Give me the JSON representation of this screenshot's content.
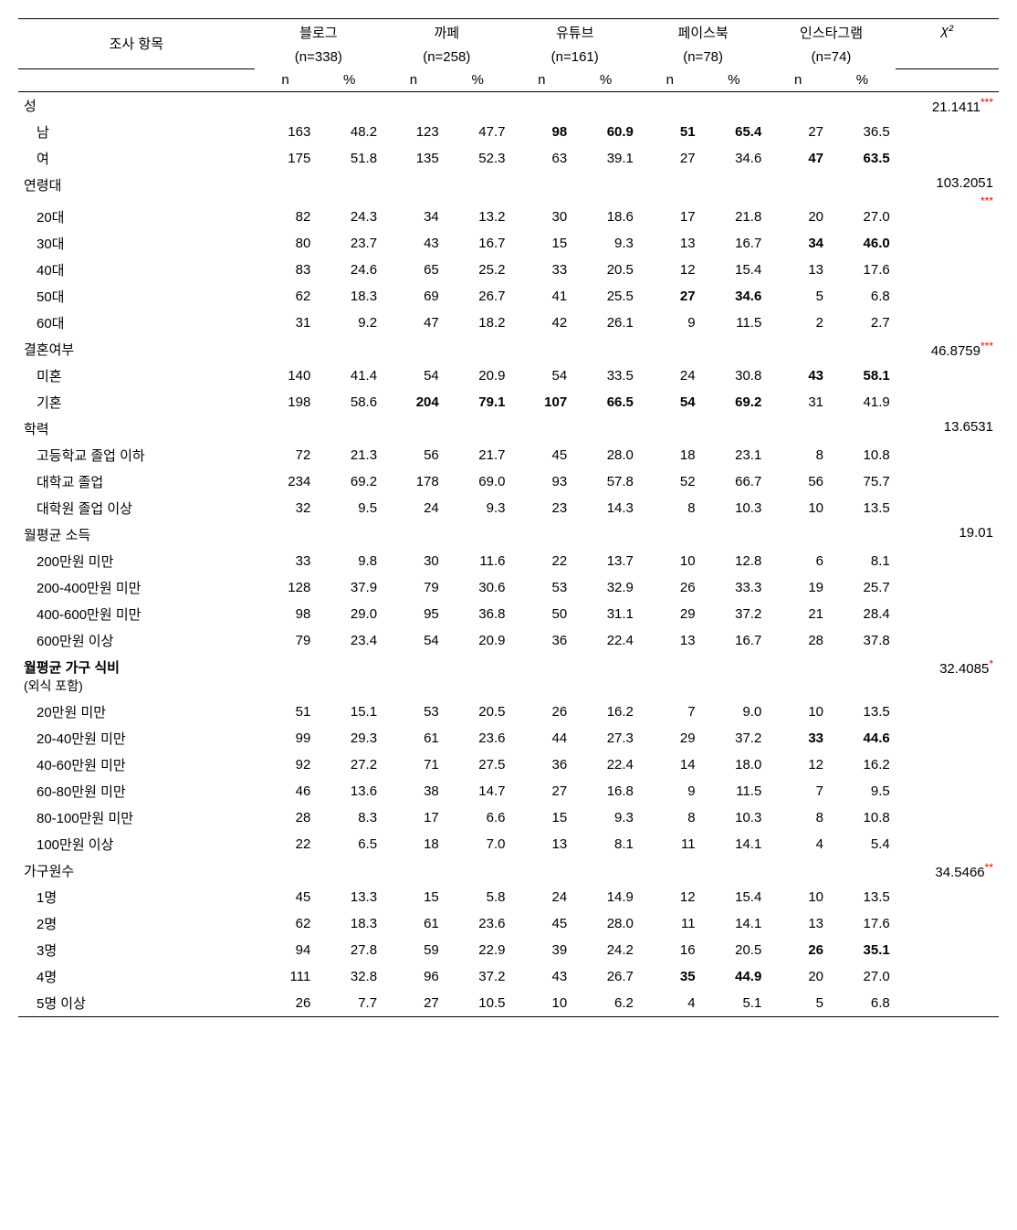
{
  "headers": {
    "survey_item": "조사 항목",
    "n_label": "n",
    "pct_label": "%",
    "chi_label": "χ²",
    "columns": [
      {
        "name": "블로그",
        "n": "(n=338)"
      },
      {
        "name": "까페",
        "n": "(n=258)"
      },
      {
        "name": "유튜브",
        "n": "(n=161)"
      },
      {
        "name": "페이스북",
        "n": "(n=78)"
      },
      {
        "name": "인스타그램",
        "n": "(n=74)"
      }
    ]
  },
  "sections": [
    {
      "label": "성",
      "chi": "21.1411",
      "sig": "***",
      "rows": [
        {
          "label": "남",
          "cells": [
            [
              "163",
              "48.2"
            ],
            [
              "123",
              "47.7"
            ],
            [
              "98",
              "60.9",
              true
            ],
            [
              "51",
              "65.4",
              true
            ],
            [
              "27",
              "36.5"
            ]
          ]
        },
        {
          "label": "여",
          "cells": [
            [
              "175",
              "51.8"
            ],
            [
              "135",
              "52.3"
            ],
            [
              "63",
              "39.1"
            ],
            [
              "27",
              "34.6"
            ],
            [
              "47",
              "63.5",
              true
            ]
          ]
        }
      ]
    },
    {
      "label": "연령대",
      "chi": "103.2051",
      "sig": "***",
      "sig_below": true,
      "rows": [
        {
          "label": "20대",
          "cells": [
            [
              "82",
              "24.3"
            ],
            [
              "34",
              "13.2"
            ],
            [
              "30",
              "18.6"
            ],
            [
              "17",
              "21.8"
            ],
            [
              "20",
              "27.0"
            ]
          ]
        },
        {
          "label": "30대",
          "cells": [
            [
              "80",
              "23.7"
            ],
            [
              "43",
              "16.7"
            ],
            [
              "15",
              "9.3"
            ],
            [
              "13",
              "16.7"
            ],
            [
              "34",
              "46.0",
              true
            ]
          ]
        },
        {
          "label": "40대",
          "cells": [
            [
              "83",
              "24.6"
            ],
            [
              "65",
              "25.2"
            ],
            [
              "33",
              "20.5"
            ],
            [
              "12",
              "15.4"
            ],
            [
              "13",
              "17.6"
            ]
          ]
        },
        {
          "label": "50대",
          "cells": [
            [
              "62",
              "18.3"
            ],
            [
              "69",
              "26.7"
            ],
            [
              "41",
              "25.5"
            ],
            [
              "27",
              "34.6",
              true
            ],
            [
              "5",
              "6.8"
            ]
          ]
        },
        {
          "label": "60대",
          "cells": [
            [
              "31",
              "9.2"
            ],
            [
              "47",
              "18.2"
            ],
            [
              "42",
              "26.1"
            ],
            [
              "9",
              "11.5"
            ],
            [
              "2",
              "2.7"
            ]
          ]
        }
      ]
    },
    {
      "label": "결혼여부",
      "chi": "46.8759",
      "sig": "***",
      "rows": [
        {
          "label": "미혼",
          "cells": [
            [
              "140",
              "41.4"
            ],
            [
              "54",
              "20.9"
            ],
            [
              "54",
              "33.5"
            ],
            [
              "24",
              "30.8"
            ],
            [
              "43",
              "58.1",
              true
            ]
          ]
        },
        {
          "label": "기혼",
          "cells": [
            [
              "198",
              "58.6"
            ],
            [
              "204",
              "79.1",
              true
            ],
            [
              "107",
              "66.5",
              true
            ],
            [
              "54",
              "69.2",
              true
            ],
            [
              "31",
              "41.9"
            ]
          ]
        }
      ]
    },
    {
      "label": "학력",
      "chi": "13.6531",
      "sig": "",
      "rows": [
        {
          "label": "고등학교 졸업 이하",
          "cells": [
            [
              "72",
              "21.3"
            ],
            [
              "56",
              "21.7"
            ],
            [
              "45",
              "28.0"
            ],
            [
              "18",
              "23.1"
            ],
            [
              "8",
              "10.8"
            ]
          ]
        },
        {
          "label": "대학교 졸업",
          "cells": [
            [
              "234",
              "69.2"
            ],
            [
              "178",
              "69.0"
            ],
            [
              "93",
              "57.8"
            ],
            [
              "52",
              "66.7"
            ],
            [
              "56",
              "75.7"
            ]
          ]
        },
        {
          "label": "대학원 졸업 이상",
          "cells": [
            [
              "32",
              "9.5"
            ],
            [
              "24",
              "9.3"
            ],
            [
              "23",
              "14.3"
            ],
            [
              "8",
              "10.3"
            ],
            [
              "10",
              "13.5"
            ]
          ]
        }
      ]
    },
    {
      "label": "월평균 소득",
      "chi": "19.01",
      "sig": "",
      "rows": [
        {
          "label": "200만원 미만",
          "cells": [
            [
              "33",
              "9.8"
            ],
            [
              "30",
              "11.6"
            ],
            [
              "22",
              "13.7"
            ],
            [
              "10",
              "12.8"
            ],
            [
              "6",
              "8.1"
            ]
          ]
        },
        {
          "label": "200-400만원 미만",
          "cells": [
            [
              "128",
              "37.9"
            ],
            [
              "79",
              "30.6"
            ],
            [
              "53",
              "32.9"
            ],
            [
              "26",
              "33.3"
            ],
            [
              "19",
              "25.7"
            ]
          ]
        },
        {
          "label": "400-600만원 미만",
          "cells": [
            [
              "98",
              "29.0"
            ],
            [
              "95",
              "36.8"
            ],
            [
              "50",
              "31.1"
            ],
            [
              "29",
              "37.2"
            ],
            [
              "21",
              "28.4"
            ]
          ]
        },
        {
          "label": "600만원 이상",
          "cells": [
            [
              "79",
              "23.4"
            ],
            [
              "54",
              "20.9"
            ],
            [
              "36",
              "22.4"
            ],
            [
              "13",
              "16.7"
            ],
            [
              "28",
              "37.8"
            ]
          ]
        }
      ]
    },
    {
      "label": "월평균 가구 식비",
      "label_bold": true,
      "sublabel": "(외식 포함)",
      "chi": "32.4085",
      "sig": "*",
      "rows": [
        {
          "label": "20만원 미만",
          "cells": [
            [
              "51",
              "15.1"
            ],
            [
              "53",
              "20.5"
            ],
            [
              "26",
              "16.2"
            ],
            [
              "7",
              "9.0"
            ],
            [
              "10",
              "13.5"
            ]
          ]
        },
        {
          "label": "20-40만원 미만",
          "cells": [
            [
              "99",
              "29.3"
            ],
            [
              "61",
              "23.6"
            ],
            [
              "44",
              "27.3"
            ],
            [
              "29",
              "37.2"
            ],
            [
              "33",
              "44.6",
              true
            ]
          ]
        },
        {
          "label": "40-60만원 미만",
          "cells": [
            [
              "92",
              "27.2"
            ],
            [
              "71",
              "27.5"
            ],
            [
              "36",
              "22.4"
            ],
            [
              "14",
              "18.0"
            ],
            [
              "12",
              "16.2"
            ]
          ]
        },
        {
          "label": "60-80만원 미만",
          "cells": [
            [
              "46",
              "13.6"
            ],
            [
              "38",
              "14.7"
            ],
            [
              "27",
              "16.8"
            ],
            [
              "9",
              "11.5"
            ],
            [
              "7",
              "9.5"
            ]
          ]
        },
        {
          "label": "80-100만원 미만",
          "cells": [
            [
              "28",
              "8.3"
            ],
            [
              "17",
              "6.6"
            ],
            [
              "15",
              "9.3"
            ],
            [
              "8",
              "10.3"
            ],
            [
              "8",
              "10.8"
            ]
          ]
        },
        {
          "label": "100만원 이상",
          "cells": [
            [
              "22",
              "6.5"
            ],
            [
              "18",
              "7.0"
            ],
            [
              "13",
              "8.1"
            ],
            [
              "11",
              "14.1"
            ],
            [
              "4",
              "5.4"
            ]
          ]
        }
      ]
    },
    {
      "label": "가구원수",
      "chi": "34.5466",
      "sig": "**",
      "rows": [
        {
          "label": "1명",
          "cells": [
            [
              "45",
              "13.3"
            ],
            [
              "15",
              "5.8"
            ],
            [
              "24",
              "14.9"
            ],
            [
              "12",
              "15.4"
            ],
            [
              "10",
              "13.5"
            ]
          ]
        },
        {
          "label": "2명",
          "cells": [
            [
              "62",
              "18.3"
            ],
            [
              "61",
              "23.6"
            ],
            [
              "45",
              "28.0"
            ],
            [
              "11",
              "14.1"
            ],
            [
              "13",
              "17.6"
            ]
          ]
        },
        {
          "label": "3명",
          "cells": [
            [
              "94",
              "27.8"
            ],
            [
              "59",
              "22.9"
            ],
            [
              "39",
              "24.2"
            ],
            [
              "16",
              "20.5"
            ],
            [
              "26",
              "35.1",
              true
            ]
          ]
        },
        {
          "label": "4명",
          "cells": [
            [
              "111",
              "32.8"
            ],
            [
              "96",
              "37.2"
            ],
            [
              "43",
              "26.7"
            ],
            [
              "35",
              "44.9",
              true
            ],
            [
              "20",
              "27.0"
            ]
          ]
        },
        {
          "label": "5명 이상",
          "cells": [
            [
              "26",
              "7.7"
            ],
            [
              "27",
              "10.5"
            ],
            [
              "10",
              "6.2"
            ],
            [
              "4",
              "5.1"
            ],
            [
              "5",
              "6.8"
            ]
          ]
        }
      ]
    }
  ]
}
